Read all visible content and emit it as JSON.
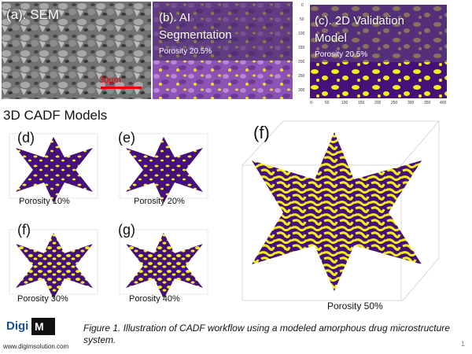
{
  "panel_a": {
    "label": "(a). SEM",
    "scale_bar": "30µm"
  },
  "panel_b": {
    "label_line1": "(b). AI",
    "label_line2": "Segmentation",
    "porosity": "Porosity 20.5%"
  },
  "panel_c": {
    "label_line1": "(c). 2D Validation",
    "label_line2": "Model",
    "porosity": "Porosity 20.5%",
    "y_ticks": [
      "0",
      "50",
      "100",
      "150",
      "200",
      "250",
      "300"
    ],
    "x_ticks": [
      "0",
      "50",
      "100",
      "150",
      "200",
      "250",
      "300",
      "350",
      "400"
    ]
  },
  "section_title": "3D CADF Models",
  "models": [
    {
      "label": "(d)",
      "porosity": "Porosity 10%"
    },
    {
      "label": "(e)",
      "porosity": "Porosity 20%"
    },
    {
      "label": "(f)",
      "porosity": "Porosity 30%"
    },
    {
      "label": "(g)",
      "porosity": "Porosity 40%"
    },
    {
      "label": "(f)",
      "porosity": "Porosity 50%"
    }
  ],
  "caption": "Figure 1. Illustration of CADF workflow using a modeled amorphous drug microstructure system.",
  "logo": {
    "text": "Digi",
    "url": "www.digimsolution.com"
  },
  "page_number": "1",
  "colors": {
    "purple": "#46107a",
    "yellow": "#f2ec1e",
    "sem_gray": "#8a8a8a"
  }
}
